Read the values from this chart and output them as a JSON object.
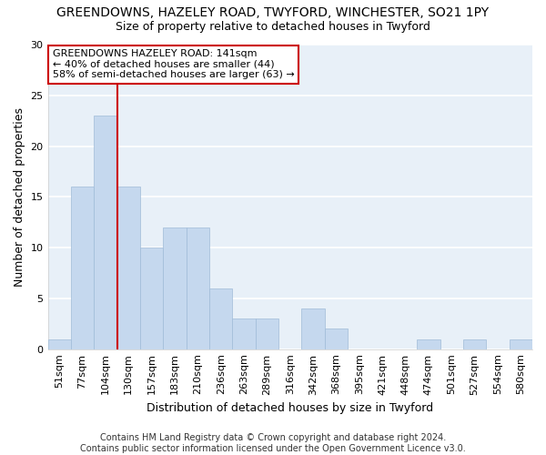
{
  "title1": "GREENDOWNS, HAZELEY ROAD, TWYFORD, WINCHESTER, SO21 1PY",
  "title2": "Size of property relative to detached houses in Twyford",
  "xlabel": "Distribution of detached houses by size in Twyford",
  "ylabel": "Number of detached properties",
  "categories": [
    "51sqm",
    "77sqm",
    "104sqm",
    "130sqm",
    "157sqm",
    "183sqm",
    "210sqm",
    "236sqm",
    "263sqm",
    "289sqm",
    "316sqm",
    "342sqm",
    "368sqm",
    "395sqm",
    "421sqm",
    "448sqm",
    "474sqm",
    "501sqm",
    "527sqm",
    "554sqm",
    "580sqm"
  ],
  "values": [
    1,
    16,
    23,
    16,
    10,
    12,
    12,
    6,
    3,
    3,
    0,
    4,
    2,
    0,
    0,
    0,
    1,
    0,
    1,
    0,
    1
  ],
  "bar_color": "#c5d8ee",
  "bar_edge_color": "#a0bcd8",
  "vline_x_index": 3,
  "vline_color": "#cc0000",
  "annotation_text": "GREENDOWNS HAZELEY ROAD: 141sqm\n← 40% of detached houses are smaller (44)\n58% of semi-detached houses are larger (63) →",
  "annotation_box_color": "#ffffff",
  "annotation_box_edgecolor": "#cc0000",
  "footer": "Contains HM Land Registry data © Crown copyright and database right 2024.\nContains public sector information licensed under the Open Government Licence v3.0.",
  "ylim": [
    0,
    30
  ],
  "yticks": [
    0,
    5,
    10,
    15,
    20,
    25,
    30
  ],
  "background_color": "#ffffff",
  "plot_bg_color": "#e8f0f8",
  "grid_color": "#ffffff",
  "title1_fontsize": 10,
  "title2_fontsize": 9,
  "ylabel_fontsize": 9,
  "xlabel_fontsize": 9,
  "tick_fontsize": 8,
  "annot_fontsize": 8,
  "footer_fontsize": 7
}
